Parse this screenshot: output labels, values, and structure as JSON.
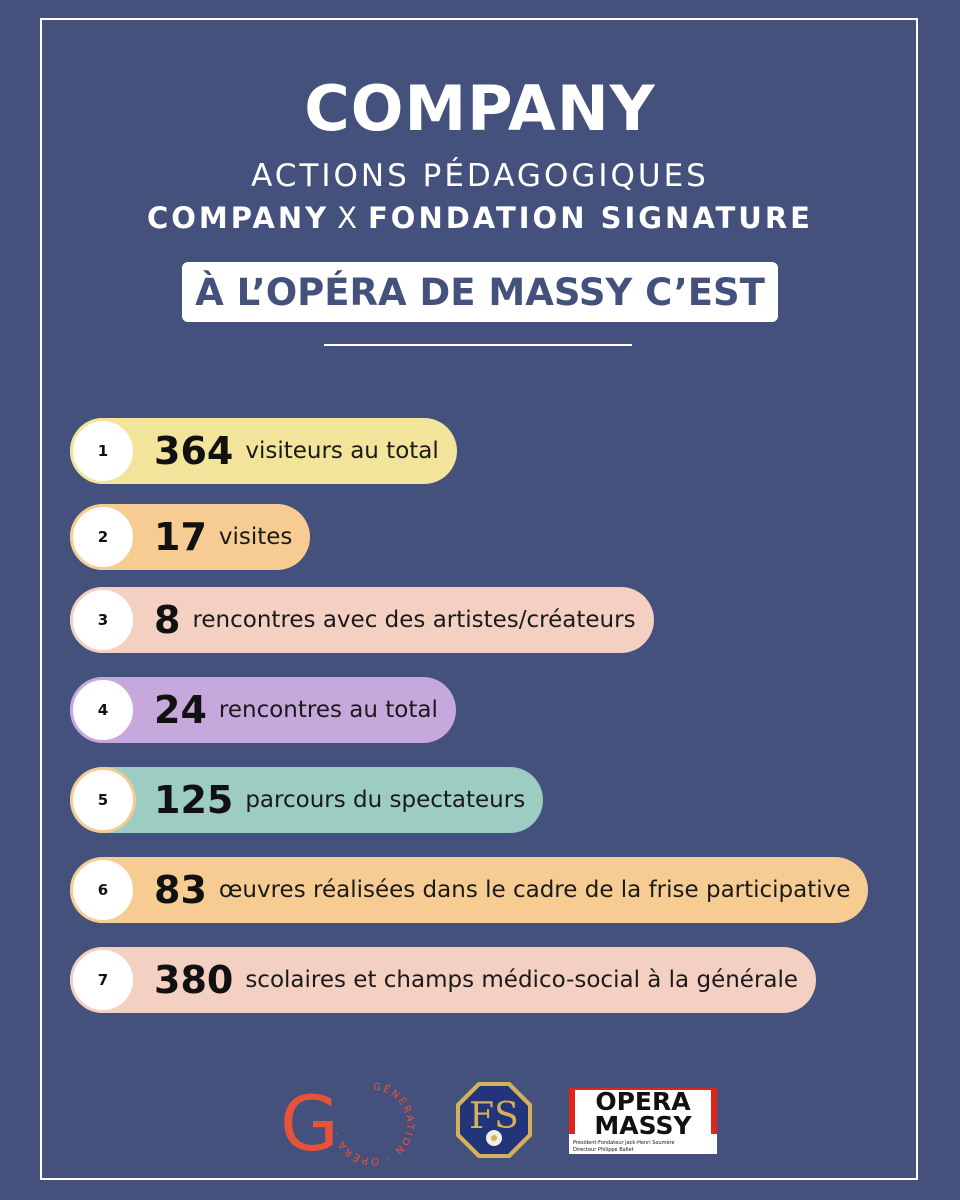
{
  "header": {
    "title": "COMPANY",
    "subtitle": "ACTIONS PÉDAGOGIQUES",
    "partner_1": "COMPANY",
    "partner_sep": "X",
    "partner_2": "FONDATION SIGNATURE",
    "venue": "À L’OPÉRA DE MASSY C’EST"
  },
  "stats": [
    {
      "rank": "1",
      "number": "364",
      "text": "visiteurs au total",
      "color": "#f2e49a",
      "ring": "#f2e49a"
    },
    {
      "rank": "2",
      "number": "17",
      "text": "visites",
      "color": "#f6cc92",
      "ring": "#f6cc92"
    },
    {
      "rank": "3",
      "number": "8",
      "text": "rencontres avec des artistes/créateurs",
      "color": "#f4d0c2",
      "ring": "#f4d0c2"
    },
    {
      "rank": "4",
      "number": "24",
      "text": "rencontres au total",
      "color": "#c7a8dd",
      "ring": "#c7a8dd"
    },
    {
      "rank": "5",
      "number": "125",
      "text": "parcours du spectateurs",
      "color": "#9dccc3",
      "ring": "#f6cc92"
    },
    {
      "rank": "6",
      "number": "83",
      "text": "œuvres réalisées dans le cadre de la frise participative",
      "color": "#f6cc92",
      "ring": "#f6cc92"
    },
    {
      "rank": "7",
      "number": "380",
      "text": "scolaires et champs médico-social à la générale",
      "color": "#f4d0c2",
      "ring": "#f4d0c2"
    }
  ],
  "logos": {
    "generation_opera": {
      "letter": "G",
      "ring_text": "GÉNÉRATION · OPÉRA ·",
      "color": "#e8523b"
    },
    "fondation_signature": {
      "monogram": "FS"
    },
    "opera_massy": {
      "line1": "OPERA",
      "line2": "MASSY",
      "credits_1": "Président-Fondateur Jack-Henri Soumère",
      "credits_2": "Directeur Philippe Ballet"
    }
  }
}
